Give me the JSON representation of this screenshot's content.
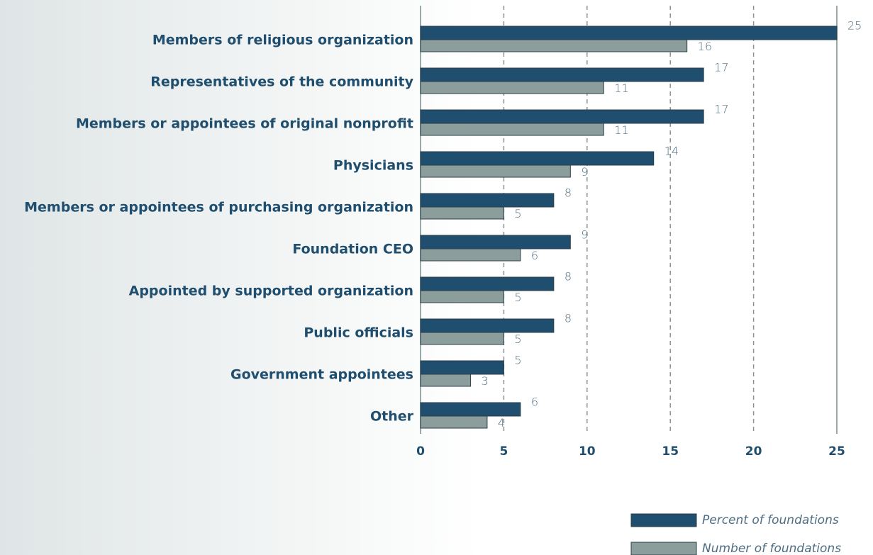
{
  "chart_data": {
    "type": "hbar",
    "categories": [
      "Members of religious organization",
      "Representatives of the community",
      "Members or appointees of original nonprofit",
      "Physicians",
      "Members or appointees of purchasing organization",
      "Foundation CEO",
      "Appointed by supported organization",
      "Public officials",
      "Government appointees",
      "Other"
    ],
    "series": [
      {
        "name": "Percent of foundations",
        "color": "#1f4e6e",
        "values": [
          25,
          17,
          17,
          14,
          8,
          9,
          8,
          8,
          5,
          6
        ]
      },
      {
        "name": "Number of foundations",
        "color": "#8c9e9b",
        "values": [
          16,
          11,
          11,
          9,
          5,
          6,
          5,
          5,
          3,
          4
        ]
      }
    ],
    "xlim": [
      0,
      25
    ],
    "xticks": [
      0,
      5,
      10,
      15,
      20,
      25
    ],
    "grid": true
  }
}
